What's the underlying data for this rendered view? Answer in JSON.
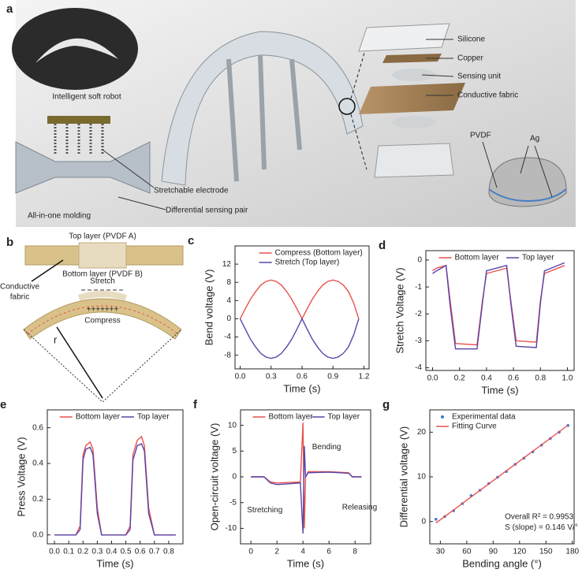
{
  "panel_a": {
    "panel": "a",
    "labels": [
      "Intelligent soft robot",
      "All-in-one molding",
      "Stretchable electrode",
      "Differential sensing pair",
      "Silicone",
      "Copper",
      "Sensing unit",
      "Conductive fabric",
      "PVDF",
      "Ag"
    ]
  },
  "panel_b": {
    "panel": "b",
    "top_layer": "Top layer (PVDF A)",
    "bottom_layer": "Bottom layer (PVDF B)",
    "fabric": [
      "Conductive",
      "fabric"
    ],
    "stretch": "Stretch",
    "compress": "Compress",
    "radius": "r",
    "plus": "+++++++"
  },
  "chart_data": [
    {
      "type": "line",
      "panel": "c",
      "xlabel": "Time (s)",
      "ylabel": "Bend voltage (V)",
      "x": [
        0,
        0.05,
        0.1,
        0.15,
        0.2,
        0.25,
        0.3,
        0.35,
        0.4,
        0.45,
        0.5,
        0.55,
        0.6,
        0.65,
        0.7,
        0.75,
        0.8,
        0.85,
        0.9,
        0.95,
        1.0,
        1.05,
        1.1,
        1.15
      ],
      "series": [
        {
          "name": "Compress (Bottom layer)",
          "color": "#e8524f",
          "values": [
            0,
            2.2,
            4.3,
            6,
            7.4,
            8.2,
            8.5,
            8.2,
            7.4,
            6,
            4.3,
            2.2,
            0,
            2.2,
            4.3,
            6,
            7.4,
            8.2,
            8.5,
            8.2,
            7.4,
            6,
            3.5,
            0
          ]
        },
        {
          "name": "Stretch (Top layer)",
          "color": "#5a44a8",
          "values": [
            0,
            -2.3,
            -4.5,
            -6.2,
            -7.6,
            -8.4,
            -8.7,
            -8.4,
            -7.6,
            -6.2,
            -4.5,
            -2.3,
            0,
            -2.3,
            -4.5,
            -6.2,
            -7.6,
            -8.4,
            -8.7,
            -8.4,
            -7.6,
            -6.2,
            -3.6,
            0
          ]
        }
      ],
      "xlim": [
        -0.05,
        1.25
      ],
      "xticks": [
        {
          "value": 0,
          "label": "0.0"
        },
        0.3,
        0.6,
        0.9,
        1.2
      ],
      "ylim": [
        -11,
        16
      ],
      "yticks": [
        -8,
        -4,
        0,
        4,
        8,
        12
      ],
      "legend": "upper center",
      "legend_ncol": 1
    },
    {
      "type": "line",
      "panel": "d",
      "xlabel": "Time (s)",
      "ylabel": "Stretch Voltage (V)",
      "x": [
        0,
        0.03,
        0.1,
        0.13,
        0.17,
        0.33,
        0.37,
        0.4,
        0.55,
        0.58,
        0.62,
        0.77,
        0.8,
        0.83,
        0.98
      ],
      "series": [
        {
          "name": "Bottom layer",
          "color": "#e8524f",
          "values": [
            -0.4,
            -0.3,
            -0.2,
            -1.5,
            -3.1,
            -3.15,
            -1.5,
            -0.5,
            -0.3,
            -1.5,
            -3.0,
            -3.05,
            -1.5,
            -0.5,
            -0.2
          ]
        },
        {
          "name": "Top layer",
          "color": "#5a44a8",
          "values": [
            -0.5,
            -0.4,
            -0.2,
            -1.7,
            -3.3,
            -3.3,
            -1.6,
            -0.4,
            -0.2,
            -1.6,
            -3.2,
            -3.25,
            -1.6,
            -0.4,
            -0.1
          ]
        }
      ],
      "xlim": [
        -0.05,
        1.05
      ],
      "xticks": [
        {
          "value": 0,
          "label": "0.0"
        },
        0.2,
        0.4,
        0.6,
        0.8,
        {
          "value": 1,
          "label": "1.0"
        }
      ],
      "ylim": [
        -4.1,
        0.35
      ],
      "yticks": [
        -4,
        -3,
        -2,
        -1,
        0
      ],
      "legend": "upper center",
      "legend_ncol": 2
    },
    {
      "type": "line",
      "panel": "e",
      "xlabel": "Time (s)",
      "ylabel": "Press Voltage (V)",
      "x": [
        0,
        0.15,
        0.18,
        0.2,
        0.22,
        0.25,
        0.27,
        0.3,
        0.33,
        0.5,
        0.53,
        0.55,
        0.58,
        0.61,
        0.63,
        0.66,
        0.7,
        0.85
      ],
      "series": [
        {
          "name": "Bottom layer",
          "color": "#e8524f",
          "values": [
            0,
            0,
            0.05,
            0.45,
            0.5,
            0.52,
            0.48,
            0.15,
            0,
            0,
            0.05,
            0.45,
            0.53,
            0.55,
            0.5,
            0.15,
            0,
            0
          ]
        },
        {
          "name": "Top layer",
          "color": "#5a44a8",
          "values": [
            0,
            0,
            0.03,
            0.42,
            0.48,
            0.49,
            0.45,
            0.12,
            0,
            0,
            0.03,
            0.42,
            0.5,
            0.51,
            0.47,
            0.12,
            0,
            0
          ]
        }
      ],
      "xlim": [
        -0.05,
        0.9
      ],
      "xticks": [
        {
          "value": 0,
          "label": "0.0"
        },
        0.1,
        0.2,
        0.3,
        0.4,
        0.5,
        0.6,
        0.7,
        0.8
      ],
      "ylim": [
        -0.05,
        0.7
      ],
      "yticks": [
        {
          "value": 0,
          "label": "0.0"
        },
        0.2,
        0.4,
        0.6
      ],
      "legend": "upper center",
      "legend_ncol": 2
    },
    {
      "type": "line",
      "panel": "f",
      "xlabel": "Time (s)",
      "ylabel": "Open-circuit voltage (V)",
      "x": [
        0,
        1,
        1.5,
        2,
        3.8,
        4.0,
        4.1,
        4.2,
        4.4,
        6,
        7.5,
        7.8,
        8.5
      ],
      "series": [
        {
          "name": "Bottom layer",
          "color": "#e8524f",
          "values": [
            0,
            0,
            -1,
            -1.2,
            -1,
            10.5,
            -10,
            0,
            1,
            1,
            0.8,
            0,
            0
          ]
        },
        {
          "name": "Top layer",
          "color": "#5a44a8",
          "values": [
            0,
            0,
            -1.2,
            -1.5,
            -1.2,
            -11,
            6,
            0,
            0.8,
            0.9,
            0.7,
            0,
            0
          ]
        }
      ],
      "xlim": [
        -0.8,
        9.2
      ],
      "xticks": [
        0,
        2,
        4,
        6,
        8
      ],
      "ylim": [
        -13,
        13
      ],
      "yticks": [
        -10,
        -5,
        0,
        5,
        10
      ],
      "legend": "upper center",
      "legend_ncol": 2,
      "annotations": [
        "Bending",
        "Stretching",
        "Releasing"
      ]
    },
    {
      "type": "scatter",
      "panel": "g",
      "xlabel": "Bending angle (°)",
      "ylabel": "Differential voltage (V)",
      "series": [
        {
          "name": "Experimental data",
          "color": "#3f78d6",
          "style": "points",
          "x": [
            25,
            35,
            45,
            55,
            65,
            75,
            85,
            95,
            105,
            115,
            125,
            135,
            145,
            155,
            165,
            175
          ],
          "values": [
            0.5,
            1.1,
            2.4,
            4.0,
            5.8,
            7.0,
            8.5,
            9.9,
            11.2,
            12.8,
            14.2,
            15.6,
            17.1,
            18.6,
            20.0,
            21.5
          ]
        },
        {
          "name": "Fitting Curve",
          "color": "#e8524f",
          "style": "line",
          "x": [
            25,
            175
          ],
          "values": [
            -0.35,
            21.55
          ]
        }
      ],
      "xlim": [
        18,
        182
      ],
      "xticks": [
        30,
        60,
        90,
        120,
        150,
        180
      ],
      "ylim": [
        -5,
        25
      ],
      "yticks": [
        0,
        10,
        20
      ],
      "legend": "upper left",
      "legend_ncol": 1,
      "annotations": [
        "Overall R² = 0.9953",
        "S (slope) = 0.146 V/°"
      ]
    }
  ]
}
